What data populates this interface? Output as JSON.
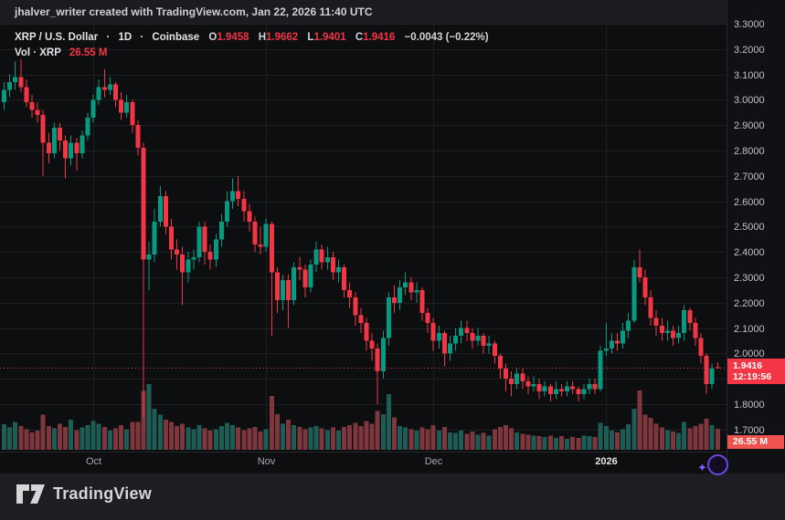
{
  "attribution": {
    "text": "jhalver_writer created with TradingView.com, Jan 22, 2026 11:40 UTC"
  },
  "legend": {
    "symbol": "XRP / U.S. Dollar",
    "sep1": "·",
    "interval": "1D",
    "sep2": "·",
    "exchange": "Coinbase",
    "o_label": "O",
    "o": "1.9458",
    "h_label": "H",
    "h": "1.9662",
    "l_label": "L",
    "l": "1.9401",
    "c_label": "C",
    "c": "1.9416",
    "change": "−0.0043 (−0.22%)",
    "vol_title": "Vol · XRP",
    "vol_value": "26.55 M"
  },
  "price_axis": {
    "labels": [
      {
        "price": 3.3,
        "text": "3.3000"
      },
      {
        "price": 3.2,
        "text": "3.2000"
      },
      {
        "price": 3.1,
        "text": "3.1000"
      },
      {
        "price": 3.0,
        "text": "3.0000"
      },
      {
        "price": 2.9,
        "text": "2.9000"
      },
      {
        "price": 2.8,
        "text": "2.8000"
      },
      {
        "price": 2.7,
        "text": "2.7000"
      },
      {
        "price": 2.6,
        "text": "2.6000"
      },
      {
        "price": 2.5,
        "text": "2.5000"
      },
      {
        "price": 2.4,
        "text": "2.4000"
      },
      {
        "price": 2.3,
        "text": "2.3000"
      },
      {
        "price": 2.2,
        "text": "2.2000"
      },
      {
        "price": 2.1,
        "text": "2.1000"
      },
      {
        "price": 2.0,
        "text": "2.0000"
      },
      {
        "price": 1.8,
        "text": "1.8000"
      },
      {
        "price": 1.7,
        "text": "1.7000"
      }
    ],
    "current_badge": {
      "price_text": "1.9416",
      "countdown": "12:19:56"
    },
    "volume_badge": "26.55 M"
  },
  "time_axis": {
    "labels": [
      {
        "text": "Oct",
        "index": 16,
        "bold": false
      },
      {
        "text": "Nov",
        "index": 47,
        "bold": false
      },
      {
        "text": "Dec",
        "index": 77,
        "bold": false
      },
      {
        "text": "2026",
        "index": 108,
        "bold": true
      }
    ]
  },
  "footer": {
    "brand": "TradingView"
  },
  "colors": {
    "up": "#089981",
    "down": "#f23645",
    "vol_up": "#1d5d55",
    "vol_down": "#7e373c",
    "grid": "#1d1f23",
    "badge": "#f23645",
    "vol_badge": "#ef5350"
  },
  "chart_data": {
    "type": "candlestick",
    "title": "XRP / U.S. Dollar · 1D · Coinbase",
    "legend_ohlc": {
      "open": 1.9458,
      "high": 1.9662,
      "low": 1.9401,
      "close": 1.9416,
      "change": -0.0043,
      "change_pct": -0.22
    },
    "current_price": 1.9416,
    "volume_current_millions": 26.55,
    "ylim": [
      1.7,
      3.3
    ],
    "grid_step": 0.1,
    "x_months": [
      "Oct",
      "Nov",
      "Dec",
      "2026"
    ],
    "series_note": "daily candles mid-Sep 2025 to Jan 22 2026, values [open,high,low,close,volume_millions] estimated from gridlines",
    "candles": [
      [
        2.99,
        3.07,
        2.96,
        3.04,
        32
      ],
      [
        3.04,
        3.1,
        3.01,
        3.07,
        28
      ],
      [
        3.07,
        3.15,
        3.04,
        3.09,
        35
      ],
      [
        3.09,
        3.16,
        3.03,
        3.05,
        30
      ],
      [
        3.05,
        3.08,
        2.97,
        2.99,
        26
      ],
      [
        2.99,
        3.02,
        2.93,
        2.96,
        22
      ],
      [
        2.96,
        2.99,
        2.91,
        2.94,
        24
      ],
      [
        2.94,
        2.96,
        2.7,
        2.83,
        44
      ],
      [
        2.83,
        2.87,
        2.75,
        2.79,
        30
      ],
      [
        2.79,
        2.91,
        2.77,
        2.89,
        27
      ],
      [
        2.89,
        2.91,
        2.8,
        2.84,
        33
      ],
      [
        2.84,
        2.86,
        2.69,
        2.77,
        29
      ],
      [
        2.77,
        2.86,
        2.74,
        2.83,
        38
      ],
      [
        2.83,
        2.85,
        2.72,
        2.79,
        25
      ],
      [
        2.79,
        2.88,
        2.77,
        2.86,
        28
      ],
      [
        2.86,
        2.95,
        2.84,
        2.93,
        31
      ],
      [
        2.93,
        3.02,
        2.91,
        3.0,
        36
      ],
      [
        3.0,
        3.08,
        2.98,
        3.05,
        33
      ],
      [
        3.05,
        3.12,
        3.01,
        3.04,
        29
      ],
      [
        3.04,
        3.09,
        3.02,
        3.06,
        24
      ],
      [
        3.06,
        3.07,
        2.97,
        3.0,
        27
      ],
      [
        3.0,
        3.03,
        2.92,
        2.95,
        31
      ],
      [
        2.95,
        3.02,
        2.93,
        2.99,
        26
      ],
      [
        2.99,
        3.0,
        2.87,
        2.9,
        35
      ],
      [
        2.9,
        2.92,
        2.78,
        2.81,
        35
      ],
      [
        2.81,
        2.83,
        1.75,
        2.37,
        74
      ],
      [
        2.37,
        2.44,
        2.25,
        2.39,
        83
      ],
      [
        2.39,
        2.57,
        2.36,
        2.52,
        52
      ],
      [
        2.52,
        2.66,
        2.5,
        2.62,
        44
      ],
      [
        2.62,
        2.64,
        2.47,
        2.5,
        38
      ],
      [
        2.5,
        2.53,
        2.37,
        2.41,
        35
      ],
      [
        2.41,
        2.45,
        2.33,
        2.39,
        30
      ],
      [
        2.39,
        2.42,
        2.19,
        2.32,
        33
      ],
      [
        2.32,
        2.4,
        2.28,
        2.37,
        28
      ],
      [
        2.37,
        2.41,
        2.33,
        2.38,
        26
      ],
      [
        2.38,
        2.52,
        2.36,
        2.5,
        31
      ],
      [
        2.5,
        2.52,
        2.35,
        2.4,
        27
      ],
      [
        2.4,
        2.43,
        2.33,
        2.37,
        24
      ],
      [
        2.37,
        2.47,
        2.34,
        2.45,
        26
      ],
      [
        2.45,
        2.55,
        2.42,
        2.52,
        30
      ],
      [
        2.52,
        2.64,
        2.5,
        2.6,
        34
      ],
      [
        2.6,
        2.69,
        2.57,
        2.64,
        31
      ],
      [
        2.64,
        2.7,
        2.58,
        2.61,
        28
      ],
      [
        2.61,
        2.64,
        2.52,
        2.56,
        25
      ],
      [
        2.56,
        2.59,
        2.48,
        2.52,
        27
      ],
      [
        2.52,
        2.54,
        2.4,
        2.43,
        29
      ],
      [
        2.43,
        2.5,
        2.39,
        2.42,
        23
      ],
      [
        2.42,
        2.53,
        2.4,
        2.51,
        26
      ],
      [
        2.51,
        2.52,
        2.07,
        2.32,
        68
      ],
      [
        2.32,
        2.34,
        2.16,
        2.21,
        45
      ],
      [
        2.21,
        2.31,
        2.17,
        2.29,
        33
      ],
      [
        2.29,
        2.31,
        2.1,
        2.21,
        38
      ],
      [
        2.21,
        2.36,
        2.19,
        2.34,
        31
      ],
      [
        2.34,
        2.38,
        2.29,
        2.33,
        29
      ],
      [
        2.33,
        2.35,
        2.22,
        2.26,
        26
      ],
      [
        2.26,
        2.37,
        2.24,
        2.35,
        28
      ],
      [
        2.35,
        2.44,
        2.32,
        2.41,
        30
      ],
      [
        2.41,
        2.43,
        2.33,
        2.36,
        27
      ],
      [
        2.36,
        2.42,
        2.33,
        2.38,
        25
      ],
      [
        2.38,
        2.4,
        2.29,
        2.32,
        28
      ],
      [
        2.32,
        2.37,
        2.28,
        2.34,
        24
      ],
      [
        2.34,
        2.35,
        2.22,
        2.25,
        29
      ],
      [
        2.25,
        2.28,
        2.18,
        2.22,
        31
      ],
      [
        2.22,
        2.24,
        2.11,
        2.15,
        34
      ],
      [
        2.15,
        2.18,
        2.08,
        2.12,
        30
      ],
      [
        2.12,
        2.14,
        2.01,
        2.05,
        36
      ],
      [
        2.05,
        2.08,
        1.97,
        2.02,
        33
      ],
      [
        2.02,
        2.04,
        1.8,
        1.93,
        49
      ],
      [
        1.93,
        2.09,
        1.9,
        2.06,
        45
      ],
      [
        2.06,
        2.24,
        2.03,
        2.22,
        70
      ],
      [
        2.22,
        2.27,
        2.16,
        2.2,
        41
      ],
      [
        2.2,
        2.29,
        2.17,
        2.26,
        30
      ],
      [
        2.26,
        2.32,
        2.23,
        2.28,
        28
      ],
      [
        2.28,
        2.3,
        2.21,
        2.24,
        26
      ],
      [
        2.24,
        2.28,
        2.2,
        2.25,
        24
      ],
      [
        2.25,
        2.26,
        2.13,
        2.16,
        28
      ],
      [
        2.16,
        2.18,
        2.08,
        2.12,
        26
      ],
      [
        2.12,
        2.14,
        2.01,
        2.05,
        31
      ],
      [
        2.05,
        2.11,
        2.02,
        2.08,
        24
      ],
      [
        2.08,
        2.09,
        1.95,
        2.0,
        29
      ],
      [
        2.0,
        2.07,
        1.97,
        2.04,
        22
      ],
      [
        2.04,
        2.1,
        2.01,
        2.07,
        21
      ],
      [
        2.07,
        2.13,
        2.04,
        2.1,
        24
      ],
      [
        2.1,
        2.13,
        2.05,
        2.08,
        20
      ],
      [
        2.08,
        2.1,
        2.02,
        2.05,
        23
      ],
      [
        2.05,
        2.1,
        2.03,
        2.07,
        19
      ],
      [
        2.07,
        2.08,
        2.0,
        2.03,
        21
      ],
      [
        2.03,
        2.07,
        2.0,
        2.04,
        18
      ],
      [
        2.04,
        2.05,
        1.96,
        1.99,
        26
      ],
      [
        1.99,
        2.0,
        1.9,
        1.94,
        29
      ],
      [
        1.94,
        1.96,
        1.85,
        1.9,
        31
      ],
      [
        1.9,
        1.93,
        1.83,
        1.88,
        27
      ],
      [
        1.88,
        1.94,
        1.86,
        1.92,
        22
      ],
      [
        1.92,
        1.94,
        1.86,
        1.89,
        20
      ],
      [
        1.89,
        1.91,
        1.84,
        1.87,
        19
      ],
      [
        1.87,
        1.91,
        1.85,
        1.88,
        18
      ],
      [
        1.88,
        1.9,
        1.82,
        1.85,
        17
      ],
      [
        1.85,
        1.89,
        1.83,
        1.87,
        16
      ],
      [
        1.87,
        1.88,
        1.81,
        1.84,
        18
      ],
      [
        1.84,
        1.89,
        1.82,
        1.86,
        15
      ],
      [
        1.86,
        1.88,
        1.83,
        1.85,
        17
      ],
      [
        1.85,
        1.89,
        1.83,
        1.87,
        14
      ],
      [
        1.87,
        1.89,
        1.84,
        1.86,
        16
      ],
      [
        1.86,
        1.87,
        1.81,
        1.84,
        15
      ],
      [
        1.84,
        1.88,
        1.82,
        1.86,
        18
      ],
      [
        1.86,
        1.9,
        1.84,
        1.88,
        17
      ],
      [
        1.88,
        1.9,
        1.84,
        1.86,
        16
      ],
      [
        1.86,
        2.03,
        1.85,
        2.01,
        34
      ],
      [
        2.01,
        2.12,
        1.99,
        2.02,
        30
      ],
      [
        2.02,
        2.08,
        2.0,
        2.05,
        24
      ],
      [
        2.05,
        2.08,
        2.01,
        2.04,
        22
      ],
      [
        2.04,
        2.12,
        2.02,
        2.09,
        26
      ],
      [
        2.09,
        2.16,
        2.06,
        2.13,
        32
      ],
      [
        2.13,
        2.37,
        2.12,
        2.34,
        52
      ],
      [
        2.34,
        2.41,
        2.28,
        2.3,
        75
      ],
      [
        2.3,
        2.33,
        2.19,
        2.22,
        44
      ],
      [
        2.22,
        2.25,
        2.11,
        2.14,
        40
      ],
      [
        2.14,
        2.17,
        2.07,
        2.11,
        33
      ],
      [
        2.11,
        2.14,
        2.05,
        2.08,
        28
      ],
      [
        2.08,
        2.13,
        2.05,
        2.09,
        25
      ],
      [
        2.09,
        2.11,
        2.03,
        2.06,
        23
      ],
      [
        2.06,
        2.11,
        2.04,
        2.08,
        21
      ],
      [
        2.08,
        2.19,
        2.05,
        2.17,
        35
      ],
      [
        2.17,
        2.18,
        2.09,
        2.12,
        27
      ],
      [
        2.12,
        2.14,
        2.03,
        2.06,
        30
      ],
      [
        2.06,
        2.08,
        1.96,
        1.99,
        33
      ],
      [
        1.99,
        2.0,
        1.84,
        1.88,
        39
      ],
      [
        1.88,
        1.96,
        1.86,
        1.94,
        31
      ],
      [
        1.9458,
        1.9662,
        1.9401,
        1.9416,
        26.55
      ]
    ]
  }
}
